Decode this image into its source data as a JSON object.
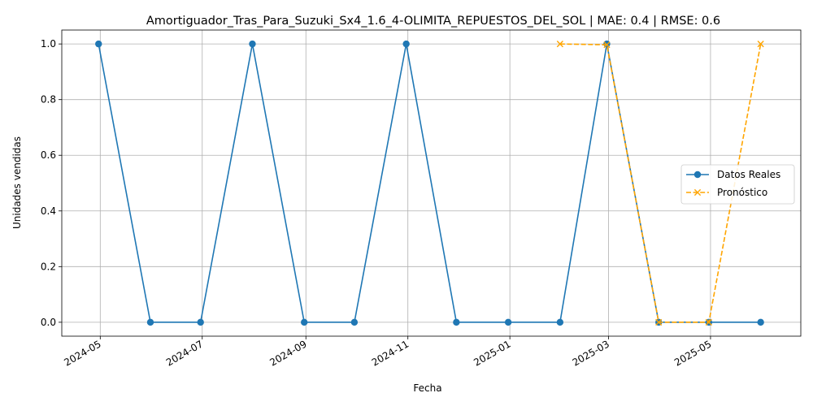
{
  "chart_data": {
    "type": "line",
    "title": "Amortiguador_Tras_Para_Suzuki_Sx4_1.6_4-OLIMITA_REPUESTOS_DEL_SOL | MAE: 0.4 | RMSE: 0.6",
    "xlabel": "Fecha",
    "ylabel": "Unidades vendidas",
    "xlim": [
      "2024-04-08",
      "2025-06-24"
    ],
    "ylim": [
      -0.05,
      1.05
    ],
    "x_ticks": [
      "2024-05",
      "2024-07",
      "2024-09",
      "2024-11",
      "2025-01",
      "2025-03",
      "2025-05"
    ],
    "y_ticks": [
      "0.0",
      "0.2",
      "0.4",
      "0.6",
      "0.8",
      "1.0"
    ],
    "grid": true,
    "legend_position": "center-right",
    "series": [
      {
        "name": "Datos Reales",
        "color": "#1f77b4",
        "marker": "circle",
        "line_style": "solid",
        "x": [
          "2024-04-30",
          "2024-05-31",
          "2024-06-30",
          "2024-07-31",
          "2024-08-31",
          "2024-09-30",
          "2024-10-31",
          "2024-11-30",
          "2024-12-31",
          "2025-01-31",
          "2025-02-28",
          "2025-03-31",
          "2025-04-30",
          "2025-05-31"
        ],
        "values": [
          1,
          0,
          0,
          1,
          0,
          0,
          1,
          0,
          0,
          0,
          1,
          0,
          0,
          0
        ]
      },
      {
        "name": "Pronóstico",
        "color": "#ffa500",
        "marker": "x",
        "line_style": "dashed",
        "x": [
          "2025-01-31",
          "2025-02-28",
          "2025-03-31",
          "2025-04-30",
          "2025-05-31"
        ],
        "values": [
          1.0,
          0.997,
          0,
          0,
          1.0
        ]
      }
    ]
  }
}
